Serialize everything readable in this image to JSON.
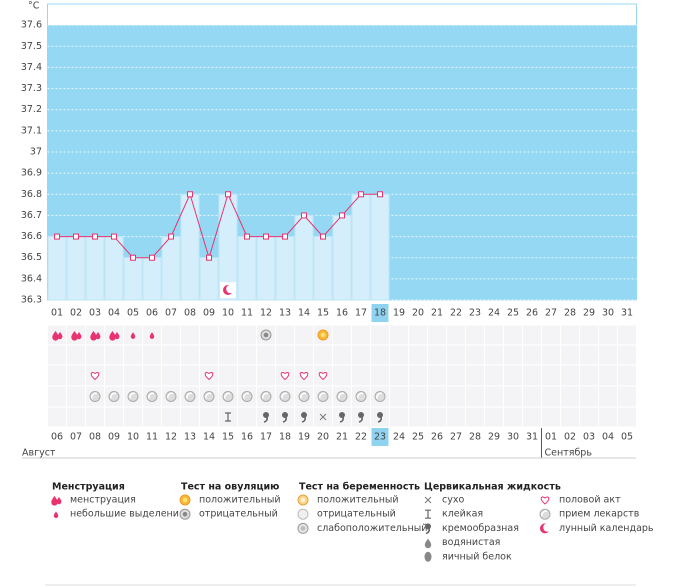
{
  "chart_data": {
    "type": "line",
    "y_label": "°C",
    "categories": [
      "01",
      "02",
      "03",
      "04",
      "05",
      "06",
      "07",
      "08",
      "09",
      "10",
      "11",
      "12",
      "13",
      "14",
      "15",
      "16",
      "17",
      "18",
      "19",
      "20",
      "21",
      "22",
      "23",
      "24",
      "25",
      "26",
      "27",
      "28",
      "29",
      "30",
      "31"
    ],
    "values": [
      36.6,
      36.6,
      36.6,
      36.6,
      36.5,
      36.5,
      36.6,
      36.8,
      36.5,
      36.8,
      36.6,
      36.6,
      36.6,
      36.7,
      36.6,
      36.7,
      36.8,
      36.8,
      null,
      null,
      null,
      null,
      null,
      null,
      null,
      null,
      null,
      null,
      null,
      null,
      null
    ],
    "color": "#e8336e",
    "ylim": [
      36.3,
      37.7
    ],
    "yticks": [
      36.3,
      36.4,
      36.5,
      36.6,
      36.7,
      36.8,
      36.9,
      37,
      37.1,
      37.2,
      37.3,
      37.4,
      37.5,
      37.6
    ],
    "grid": true,
    "highlight": 17,
    "dates": [
      "06",
      "07",
      "08",
      "09",
      "10",
      "11",
      "12",
      "13",
      "14",
      "15",
      "16",
      "17",
      "18",
      "19",
      "20",
      "21",
      "22",
      "23",
      "24",
      "25",
      "26",
      "27",
      "28",
      "29",
      "30",
      "31",
      "01",
      "02",
      "03",
      "04",
      "05"
    ],
    "weekend": [
      false,
      false,
      false,
      false,
      true,
      true,
      false,
      false,
      false,
      false,
      false,
      true,
      true,
      false,
      false,
      false,
      false,
      false,
      true,
      true,
      false,
      false,
      false,
      false,
      false,
      true,
      false,
      false,
      false,
      false,
      false
    ],
    "months": [
      "Август",
      "Сентябрь"
    ],
    "legend": [
      {
        "title": "Менструация",
        "items": [
          {
            "label": "менструация",
            "days": [
              "01",
              "02",
              "03",
              "04"
            ]
          },
          {
            "label": "небольшие выделения",
            "days": [
              "05",
              "06"
            ]
          }
        ]
      },
      {
        "title": "Тест на овуляцию",
        "items": [
          {
            "label": "положительный",
            "days": [
              "15"
            ]
          },
          {
            "label": "отрицательный",
            "days": [
              "12"
            ]
          }
        ]
      },
      {
        "title": "Тест на беременность",
        "items": [
          {
            "label": "положительный",
            "days": []
          },
          {
            "label": "отрицательный",
            "days": []
          },
          {
            "label": "слабоположительный",
            "days": []
          }
        ]
      },
      {
        "title": "Цервикальная жидкость",
        "items": [
          {
            "label": "сухо",
            "days": [
              "15"
            ]
          },
          {
            "label": "клейкая",
            "days": [
              "10"
            ]
          },
          {
            "label": "кремообразная",
            "days": [
              "12",
              "13",
              "14",
              "16",
              "17",
              "18"
            ]
          },
          {
            "label": "водянистая",
            "days": []
          },
          {
            "label": "яичный белок",
            "days": []
          }
        ]
      },
      {
        "items": [
          {
            "label": "половой акт",
            "days": [
              "03",
              "09",
              "13",
              "14",
              "15"
            ]
          },
          {
            "label": "прием лекарств",
            "days": [
              "03",
              "04",
              "05",
              "06",
              "07",
              "08",
              "09",
              "10",
              "11",
              "12",
              "13",
              "14",
              "15",
              "16",
              "17",
              "18"
            ]
          },
          {
            "label": "лунный календарь",
            "days": [
              "10"
            ]
          }
        ]
      }
    ]
  }
}
